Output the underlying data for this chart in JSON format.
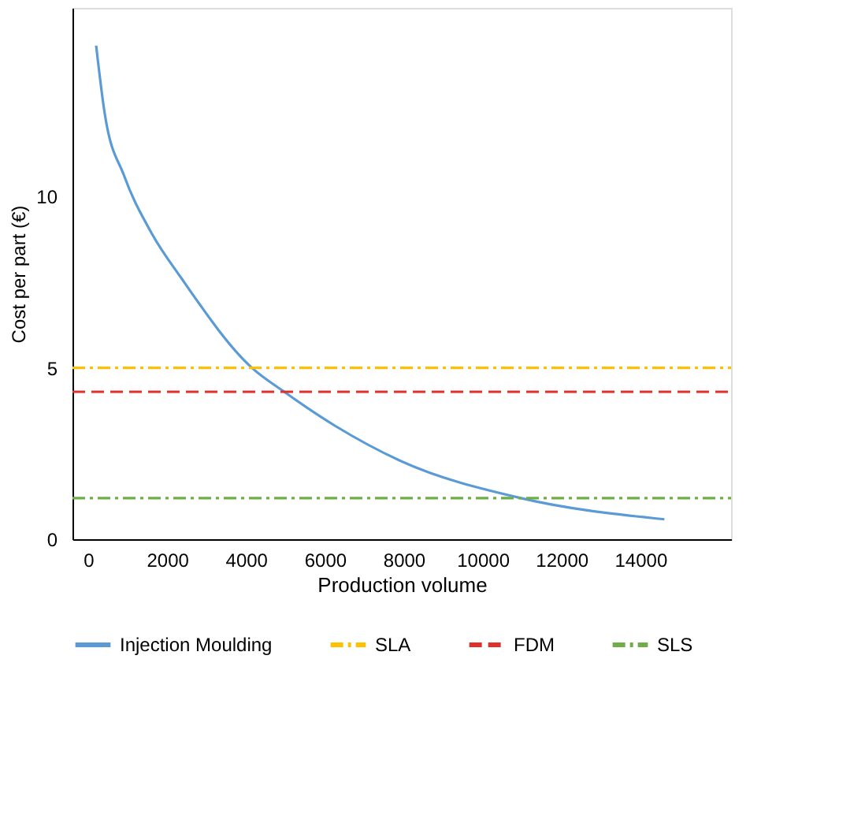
{
  "chart_data": {
    "type": "line",
    "xlabel": "Production volume",
    "ylabel": "Cost per part (€)",
    "xlim": [
      -400,
      16300
    ],
    "ylim": [
      0,
      15.5
    ],
    "xticks": [
      0,
      2000,
      4000,
      6000,
      8000,
      10000,
      12000,
      14000
    ],
    "yticks": [
      0,
      5,
      10
    ],
    "grid": false,
    "legend": "bottom",
    "marker": "none",
    "series": [
      {
        "name": "Injection Moulding",
        "color": "#5b9bd5",
        "line_style": "solid",
        "x": [
          200,
          420,
          910,
          1620,
          2370,
          4150,
          4970,
          6270,
          7890,
          10970,
          14610
        ],
        "values": [
          14.4,
          12.4,
          10.6,
          8.9,
          7.6,
          5.0,
          4.3,
          3.3,
          2.3,
          1.2,
          0.58
        ]
      },
      {
        "name": "SLA",
        "color": "#ffc000",
        "line_style": "dashdot",
        "x": [
          -400,
          16300
        ],
        "values": [
          5.0,
          5.0
        ]
      },
      {
        "name": "FDM",
        "color": "#e0302a",
        "line_style": "dashed",
        "x": [
          -400,
          16300
        ],
        "values": [
          4.3,
          4.3
        ]
      },
      {
        "name": "SLS",
        "color": "#70ad47",
        "line_style": "dashdot",
        "x": [
          -400,
          16300
        ],
        "values": [
          1.2,
          1.2
        ]
      }
    ]
  }
}
